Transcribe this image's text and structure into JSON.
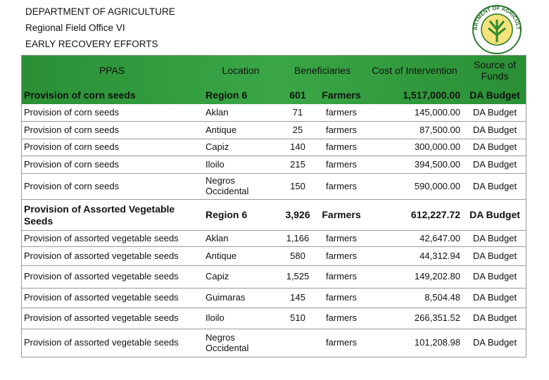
{
  "header": {
    "title": "DEPARTMENT OF AGRICULTURE",
    "subtitle": "Regional Field Office VI",
    "heading": "EARLY RECOVERY EFFORTS",
    "logo_text": "DEPARTMENT OF AGRICULTURE"
  },
  "table": {
    "columns": [
      "PPAS",
      "Location",
      "Beneficiaries",
      "Cost of Intervention",
      "Source of Funds"
    ],
    "sections": [
      {
        "summary": [
          "Provision of corn seeds",
          "Region 6",
          "601",
          "Farmers",
          "1,517,000.00",
          "DA Budget"
        ],
        "rows": [
          [
            "Provision of corn seeds",
            "Aklan",
            "71",
            "farmers",
            "145,000.00",
            "DA Budget"
          ],
          [
            "Provision of corn seeds",
            "Antique",
            "25",
            "farmers",
            "87,500.00",
            "DA Budget"
          ],
          [
            "Provision of corn seeds",
            "Capiz",
            "140",
            "farmers",
            "300,000.00",
            "DA Budget"
          ],
          [
            "Provision of corn seeds",
            "Iloilo",
            "215",
            "farmers",
            "394,500.00",
            "DA Budget"
          ],
          [
            "Provision of corn seeds",
            "Negros Occidental",
            "150",
            "farmers",
            "590,000.00",
            "DA Budget"
          ]
        ]
      },
      {
        "summary": [
          "Provision of Assorted Vegetable Seeds",
          "Region 6",
          "3,926",
          "Farmers",
          "612,227.72",
          "DA Budget"
        ],
        "rows": [
          [
            "Provision of assorted vegetable seeds",
            "Aklan",
            "1,166",
            "farmers",
            "42,647.00",
            "DA Budget"
          ],
          [
            "Provision of assorted vegetable seeds",
            "Antique",
            "580",
            "farmers",
            "44,312.94",
            "DA Budget"
          ],
          [
            "Provision of assorted vegetable seeds",
            "Capiz",
            "1,525",
            "farmers",
            "149,202.80",
            "DA Budget"
          ],
          [
            "Provision of assorted vegetable seeds",
            "Guimaras",
            "145",
            "farmers",
            "8,504.48",
            "DA Budget"
          ],
          [
            "Provision of assorted vegetable seeds",
            "Iloilo",
            "510",
            "farmers",
            "266,351.52",
            "DA Budget"
          ],
          [
            "Provision of assorted vegetable seeds",
            "Negros Occidental",
            null,
            "farmers",
            "101,208.98",
            "DA Budget"
          ]
        ]
      }
    ]
  }
}
